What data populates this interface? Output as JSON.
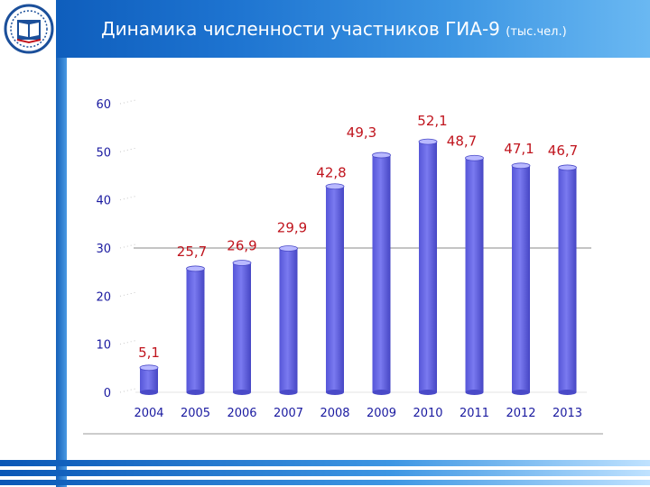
{
  "header": {
    "title": "Динамика численности участников ГИА-9",
    "unit": "(тыс.чел.)"
  },
  "colors": {
    "header_start": "#0a57b6",
    "header_end": "#6ab8f2",
    "bar": "#7a7af0",
    "value_label": "#c0141d",
    "axis_text": "#1a1aa0"
  },
  "logo": {
    "icon": "book-emblem-icon"
  },
  "chart_data": {
    "type": "bar",
    "title": "Динамика численности участников ГИА-9 (тыс.чел.)",
    "xlabel": "",
    "ylabel": "",
    "categories": [
      "2004",
      "2005",
      "2006",
      "2007",
      "2008",
      "2009",
      "2010",
      "2011",
      "2012",
      "2013"
    ],
    "values": [
      5.1,
      25.7,
      26.9,
      29.9,
      42.8,
      49.3,
      52.1,
      48.7,
      47.1,
      46.7
    ],
    "value_labels": [
      "5,1",
      "25,7",
      "26,9",
      "29,9",
      "42,8",
      "49,3",
      "52,1",
      "48,7",
      "47,1",
      "46,7"
    ],
    "yticks": [
      "0",
      "10",
      "20",
      "30",
      "40",
      "50",
      "60"
    ],
    "ylim": [
      0,
      60
    ],
    "reference_line": 30,
    "grid": false
  }
}
